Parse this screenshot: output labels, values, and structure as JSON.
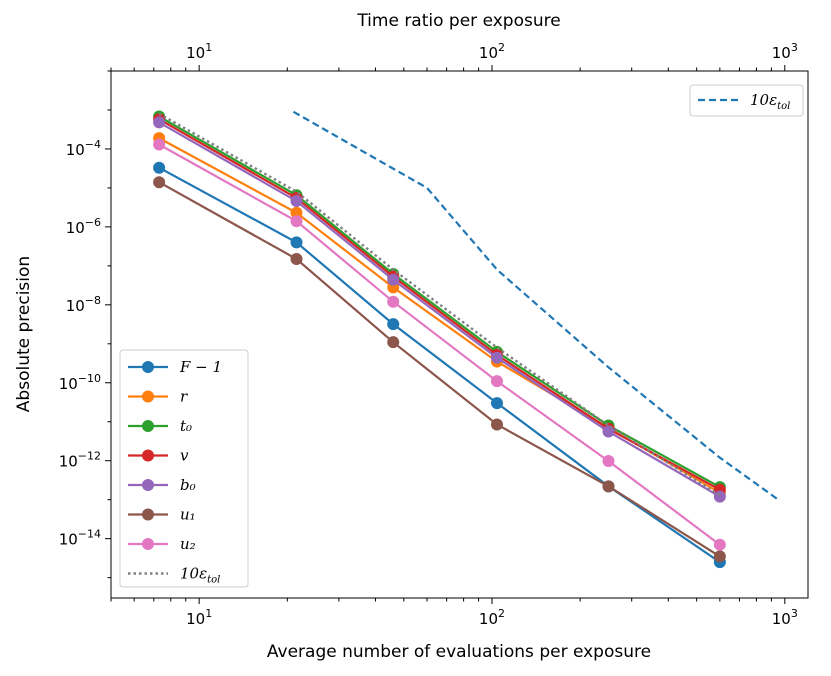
{
  "chart_data": {
    "type": "line",
    "xlabel": "Average number of evaluations per exposure",
    "x2label": "Time ratio per exposure",
    "ylabel": "Absolute precision",
    "xscale": "log",
    "yscale": "log",
    "xlim": [
      5,
      1200
    ],
    "x2lim": [
      5,
      1200
    ],
    "ylim": [
      3e-16,
      0.01
    ],
    "x_ticks": [
      10,
      100,
      1000
    ],
    "x2_ticks": [
      10,
      100,
      1000
    ],
    "y_ticks": [
      1e-14,
      1e-12,
      1e-10,
      1e-08,
      1e-06,
      0.0001
    ],
    "grid": false,
    "legend_main": "lower-left",
    "legend_secondary": "upper-right",
    "series": [
      {
        "name": "F − 1",
        "color": "#1f77b4",
        "style": "solid-marker",
        "x": [
          7.3,
          21.5,
          46,
          104,
          250,
          600
        ],
        "y": [
          3.3e-05,
          4e-07,
          3.2e-09,
          3e-11,
          2.2e-13,
          2.5e-15
        ]
      },
      {
        "name": "r",
        "color": "#ff7f0e",
        "style": "solid-marker",
        "x": [
          7.3,
          21.5,
          46,
          104,
          250,
          600
        ],
        "y": [
          0.00019,
          2.3e-06,
          2.8e-08,
          3.5e-10,
          7e-12,
          1.5e-13
        ]
      },
      {
        "name": "t₀",
        "color": "#2ca02c",
        "style": "solid-marker",
        "x": [
          7.3,
          21.5,
          46,
          104,
          250,
          600
        ],
        "y": [
          0.00068,
          6.5e-06,
          6.2e-08,
          6.2e-10,
          8e-12,
          2.1e-13
        ]
      },
      {
        "name": "v",
        "color": "#d62728",
        "style": "solid-marker",
        "x": [
          7.3,
          21.5,
          46,
          104,
          250,
          600
        ],
        "y": [
          0.00058,
          5.5e-06,
          5.3e-08,
          5.2e-10,
          6.6e-12,
          1.8e-13
        ]
      },
      {
        "name": "b₀",
        "color": "#9467bd",
        "style": "solid-marker",
        "x": [
          7.3,
          21.5,
          46,
          104,
          250,
          600
        ],
        "y": [
          0.00048,
          4.6e-06,
          4.4e-08,
          4.4e-10,
          5.6e-12,
          1.2e-13
        ]
      },
      {
        "name": "u₁",
        "color": "#8c564b",
        "style": "solid-marker",
        "x": [
          7.3,
          21.5,
          46,
          104,
          250,
          600
        ],
        "y": [
          1.4e-05,
          1.5e-07,
          1.1e-09,
          8.5e-12,
          2.2e-13,
          3.5e-15
        ]
      },
      {
        "name": "u₂",
        "color": "#e377c2",
        "style": "solid-marker",
        "x": [
          7.3,
          21.5,
          46,
          104,
          250,
          600
        ],
        "y": [
          0.00013,
          1.4e-06,
          1.2e-08,
          1.1e-10,
          9.8e-13,
          7e-15
        ]
      },
      {
        "name": "10ε",
        "sub": "tol",
        "color": "#808080",
        "style": "dotted",
        "x": [
          7.3,
          21.5,
          46,
          104,
          250,
          600
        ],
        "y": [
          0.0008,
          8e-06,
          8e-08,
          8e-10,
          8e-12,
          1.3e-13
        ]
      },
      {
        "name": "10ε",
        "sub": "tol",
        "color": "#1f77b4",
        "style": "dashed",
        "axis": "top",
        "x": [
          21,
          60,
          104,
          250,
          600,
          950
        ],
        "y": [
          0.0009,
          1e-05,
          8e-08,
          2.5e-10,
          1.2e-12,
          1e-13
        ]
      }
    ]
  },
  "labels": {
    "xlabel": "Average number of evaluations per exposure",
    "x2label": "Time ratio per exposure",
    "ylabel": "Absolute precision",
    "xtick_base": "10",
    "xtick_exps": [
      "1",
      "2",
      "3"
    ],
    "ytick_base": "10",
    "ytick_exps": [
      "−14",
      "−12",
      "−10",
      "−8",
      "−6",
      "−4"
    ]
  }
}
